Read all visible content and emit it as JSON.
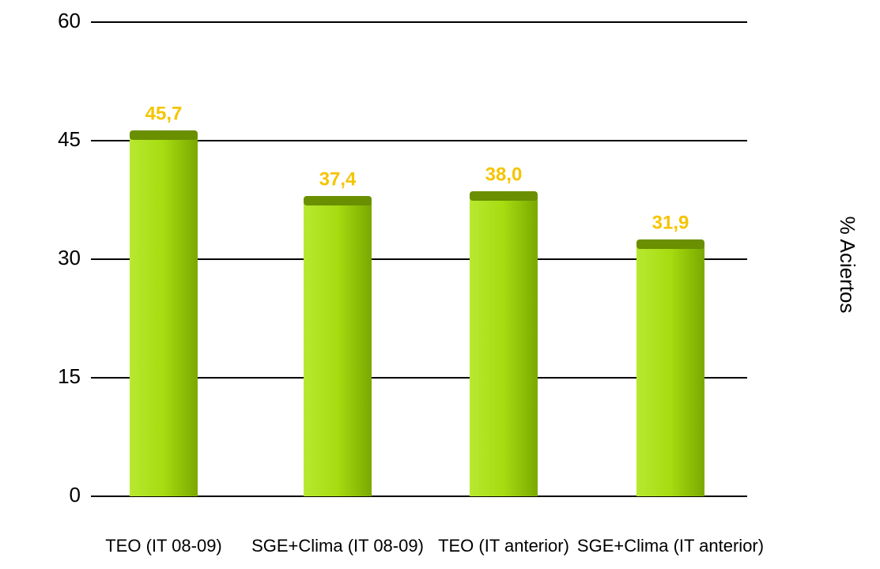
{
  "chart_data": {
    "type": "bar",
    "categories": [
      "TEO (IT 08-09)",
      "SGE+Clima (IT 08-09)",
      "TEO (IT anterior)",
      "SGE+Clima (IT anterior)"
    ],
    "values": [
      45.7,
      37.4,
      38.0,
      31.9
    ],
    "value_labels": [
      "45,7",
      "37,4",
      "38,0",
      "31,9"
    ],
    "color": "#9fd100",
    "y_label": "% Aciertos",
    "ylim": [
      0,
      60
    ],
    "yticks": [
      0,
      15,
      30,
      45,
      60
    ],
    "grid": true
  }
}
